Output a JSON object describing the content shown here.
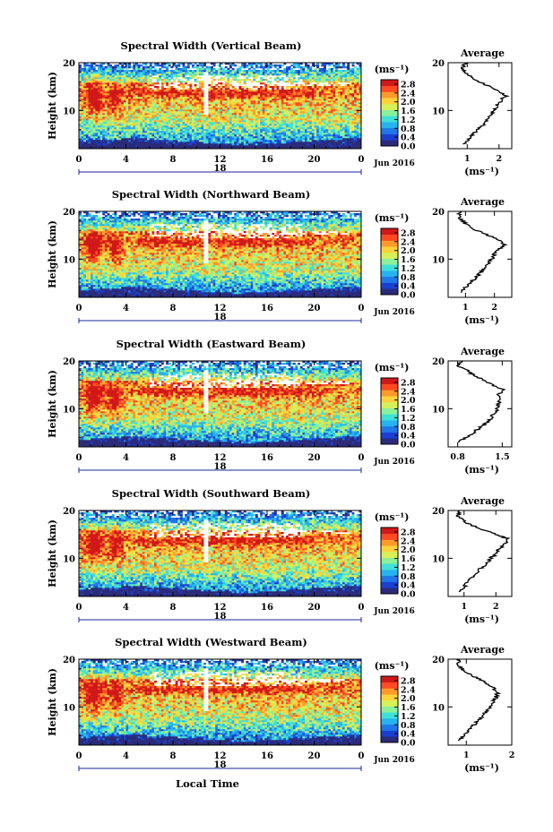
{
  "figure": {
    "xlabel": "Local Time",
    "date_label": "Jun 2016",
    "day_label": "18",
    "avg_title": "Average",
    "avg_xlabel": "(ms⁻¹)",
    "colorbar_unit": "(ms⁻¹)"
  },
  "chart_data": [
    {
      "type": "heatmap",
      "title": "Spectral Width (Vertical Beam)",
      "ylabel": "Height (km)",
      "xlabel": "Local Time",
      "x_ticks": [
        "0",
        "4",
        "8",
        "12",
        "16",
        "20",
        "0"
      ],
      "xlim": [
        0,
        24
      ],
      "y_ticks": [
        "10",
        "20"
      ],
      "ylim": [
        2,
        20
      ],
      "colorbar": {
        "label": "(ms⁻¹)",
        "ticks": [
          "2.8",
          "2.4",
          "2.0",
          "1.6",
          "1.2",
          "0.8",
          "0.4",
          "0.0"
        ],
        "range": [
          0.0,
          3.0
        ]
      },
      "colors": [
        "#2b2b7a",
        "#1a3fd1",
        "#1f77e8",
        "#27b3f0",
        "#3fe0d8",
        "#8af09a",
        "#d6f05a",
        "#ffd23a",
        "#ff9a2a",
        "#ff4a22",
        "#d01818"
      ],
      "average_profile": {
        "title": "Average",
        "xlabel": "(ms⁻¹)",
        "x_ticks": [
          "1",
          "2"
        ],
        "xlim": [
          0.4,
          2.4
        ],
        "height_km": [
          3,
          4,
          5,
          6,
          7,
          8,
          9,
          10,
          11,
          12,
          13,
          14,
          15,
          16,
          17,
          18,
          19,
          20
        ],
        "value": [
          0.9,
          1.05,
          1.2,
          1.35,
          1.5,
          1.62,
          1.75,
          1.85,
          1.95,
          2.05,
          2.2,
          2.05,
          1.7,
          1.35,
          1.15,
          0.95,
          0.85,
          0.95
        ]
      }
    },
    {
      "type": "heatmap",
      "title": "Spectral Width (Northward Beam)",
      "ylabel": "Height (km)",
      "xlabel": "Local Time",
      "x_ticks": [
        "0",
        "4",
        "8",
        "12",
        "16",
        "20",
        "0"
      ],
      "xlim": [
        0,
        24
      ],
      "y_ticks": [
        "10",
        "20"
      ],
      "ylim": [
        2,
        20
      ],
      "colorbar": {
        "label": "(ms⁻¹)",
        "ticks": [
          "2.8",
          "2.4",
          "2.0",
          "1.6",
          "1.2",
          "0.8",
          "0.4",
          "0.0"
        ],
        "range": [
          0.0,
          3.0
        ]
      },
      "colors": [
        "#2b2b7a",
        "#1a3fd1",
        "#1f77e8",
        "#27b3f0",
        "#3fe0d8",
        "#8af09a",
        "#d6f05a",
        "#ffd23a",
        "#ff9a2a",
        "#ff4a22",
        "#d01818"
      ],
      "average_profile": {
        "title": "Average",
        "xlabel": "(ms⁻¹)",
        "x_ticks": [
          "1",
          "2"
        ],
        "xlim": [
          0.4,
          2.6
        ],
        "height_km": [
          3,
          4,
          5,
          6,
          7,
          8,
          9,
          10,
          11,
          12,
          13,
          14,
          15,
          16,
          17,
          18,
          19,
          20
        ],
        "value": [
          0.8,
          1.0,
          1.15,
          1.35,
          1.5,
          1.65,
          1.8,
          1.9,
          2.0,
          2.15,
          2.35,
          2.2,
          1.8,
          1.4,
          1.1,
          0.9,
          0.75,
          0.8
        ]
      }
    },
    {
      "type": "heatmap",
      "title": "Spectral Width (Eastward Beam)",
      "ylabel": "Height (km)",
      "xlabel": "Local Time",
      "x_ticks": [
        "0",
        "4",
        "8",
        "12",
        "16",
        "20",
        "0"
      ],
      "xlim": [
        0,
        24
      ],
      "y_ticks": [
        "10",
        "20"
      ],
      "ylim": [
        2,
        20
      ],
      "colorbar": {
        "label": "(ms⁻¹)",
        "ticks": [
          "2.8",
          "2.4",
          "2.0",
          "1.6",
          "1.2",
          "0.8",
          "0.4",
          "0.0"
        ],
        "range": [
          0.0,
          3.0
        ]
      },
      "colors": [
        "#2b2b7a",
        "#1a3fd1",
        "#1f77e8",
        "#27b3f0",
        "#3fe0d8",
        "#8af09a",
        "#d6f05a",
        "#ffd23a",
        "#ff9a2a",
        "#ff4a22",
        "#d01818"
      ],
      "average_profile": {
        "title": "Average",
        "xlabel": "(ms⁻¹)",
        "x_ticks": [
          "0.8",
          "1.5"
        ],
        "xlim": [
          0.65,
          1.65
        ],
        "height_km": [
          3,
          4,
          5,
          6,
          7,
          8,
          9,
          10,
          11,
          12,
          13,
          14,
          15,
          16,
          17,
          18,
          19,
          20
        ],
        "value": [
          0.8,
          0.95,
          1.05,
          1.15,
          1.25,
          1.32,
          1.38,
          1.42,
          1.45,
          1.48,
          1.45,
          1.5,
          1.35,
          1.2,
          1.05,
          0.95,
          0.8,
          0.85
        ]
      }
    },
    {
      "type": "heatmap",
      "title": "Spectral Width (Southward Beam)",
      "ylabel": "Height (km)",
      "xlabel": "Local Time",
      "x_ticks": [
        "0",
        "4",
        "8",
        "12",
        "16",
        "20",
        "0"
      ],
      "xlim": [
        0,
        24
      ],
      "y_ticks": [
        "10",
        "20"
      ],
      "ylim": [
        2,
        20
      ],
      "colorbar": {
        "label": "(ms⁻¹)",
        "ticks": [
          "2.8",
          "2.4",
          "2.0",
          "1.6",
          "1.2",
          "0.8",
          "0.4",
          "0.0"
        ],
        "range": [
          0.0,
          3.0
        ]
      },
      "colors": [
        "#2b2b7a",
        "#1a3fd1",
        "#1f77e8",
        "#27b3f0",
        "#3fe0d8",
        "#8af09a",
        "#d6f05a",
        "#ffd23a",
        "#ff9a2a",
        "#ff4a22",
        "#d01818"
      ],
      "average_profile": {
        "title": "Average",
        "xlabel": "(ms⁻¹)",
        "x_ticks": [
          "1",
          "2"
        ],
        "xlim": [
          0.5,
          2.5
        ],
        "height_km": [
          3,
          4,
          5,
          6,
          7,
          8,
          9,
          10,
          11,
          12,
          13,
          14,
          15,
          16,
          17,
          18,
          19,
          20
        ],
        "value": [
          0.85,
          1.0,
          1.1,
          1.25,
          1.4,
          1.55,
          1.7,
          1.85,
          2.0,
          2.1,
          2.3,
          2.4,
          2.0,
          1.6,
          1.2,
          0.95,
          0.8,
          0.85
        ]
      }
    },
    {
      "type": "heatmap",
      "title": "Spectral Width (Westward Beam)",
      "ylabel": "Height (km)",
      "xlabel": "Local Time",
      "x_ticks": [
        "0",
        "4",
        "8",
        "12",
        "16",
        "20",
        "0"
      ],
      "xlim": [
        0,
        24
      ],
      "y_ticks": [
        "10",
        "20"
      ],
      "ylim": [
        2,
        20
      ],
      "colorbar": {
        "label": "(ms⁻¹)",
        "ticks": [
          "2.8",
          "2.4",
          "2.0",
          "1.6",
          "1.2",
          "0.8",
          "0.4",
          "0.0"
        ],
        "range": [
          0.0,
          3.0
        ]
      },
      "colors": [
        "#2b2b7a",
        "#1a3fd1",
        "#1f77e8",
        "#27b3f0",
        "#3fe0d8",
        "#8af09a",
        "#d6f05a",
        "#ffd23a",
        "#ff9a2a",
        "#ff4a22",
        "#d01818"
      ],
      "average_profile": {
        "title": "Average",
        "xlabel": "(ms⁻¹)",
        "x_ticks": [
          "1",
          "2"
        ],
        "xlim": [
          0.6,
          2.0
        ],
        "height_km": [
          3,
          4,
          5,
          6,
          7,
          8,
          9,
          10,
          11,
          12,
          13,
          14,
          15,
          16,
          17,
          18,
          19,
          20
        ],
        "value": [
          0.85,
          0.95,
          1.05,
          1.15,
          1.25,
          1.35,
          1.45,
          1.55,
          1.6,
          1.65,
          1.7,
          1.6,
          1.45,
          1.25,
          1.05,
          0.9,
          0.8,
          0.85
        ]
      }
    }
  ]
}
